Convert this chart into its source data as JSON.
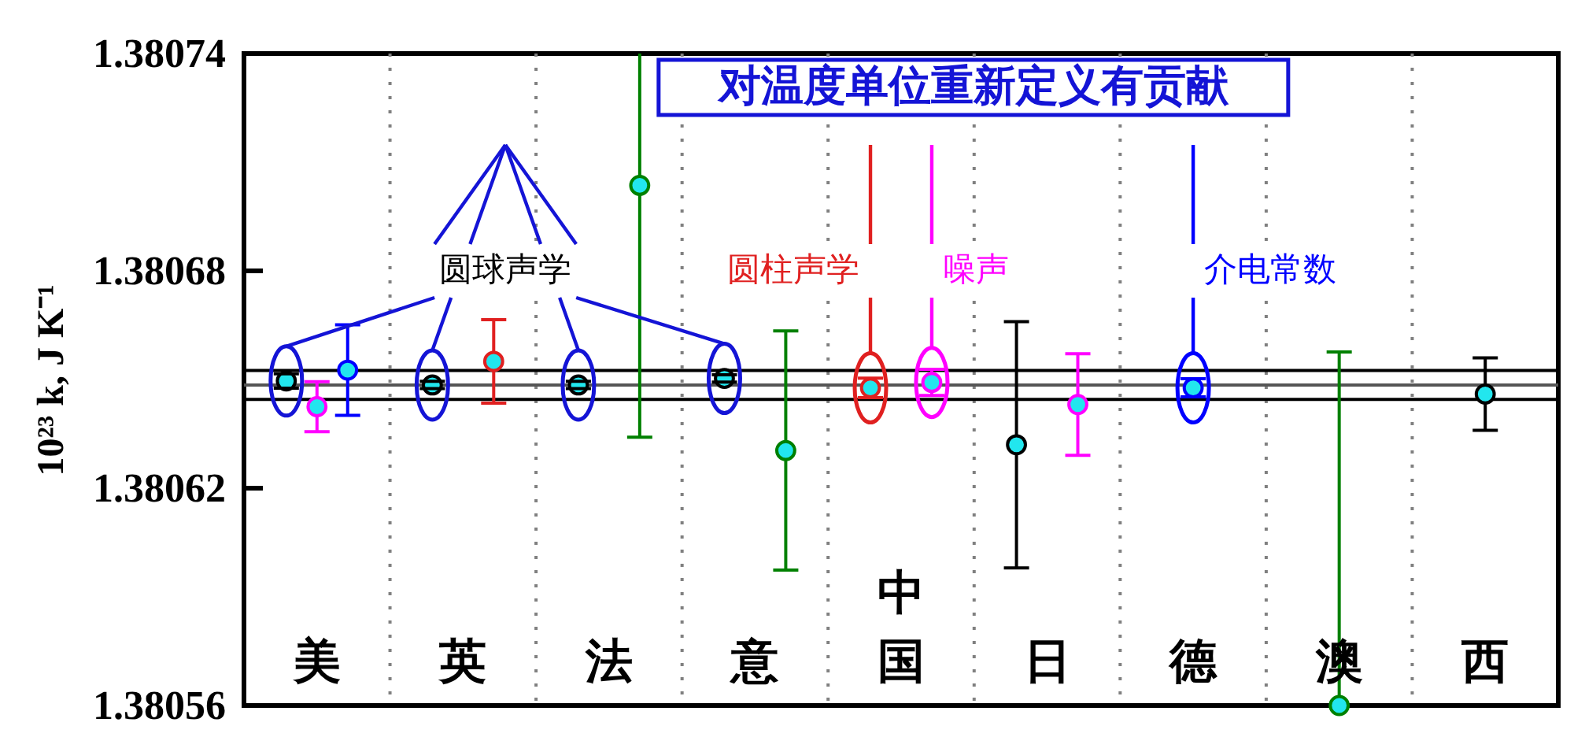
{
  "chart_data": {
    "type": "scatter",
    "ylabel": "10²³ k, J K⁻¹",
    "categories": [
      "美",
      "英",
      "法",
      "意",
      "中国",
      "日",
      "德",
      "澳",
      "西"
    ],
    "ylim": [
      1.38056,
      1.38074
    ],
    "yticks": [
      1.38056,
      1.38062,
      1.38068,
      1.38074
    ],
    "grid": "x",
    "marker": "circle",
    "annotations": [
      "对温度单位重新定义有贡献"
    ],
    "ref_lines": [
      {
        "axis": "y",
        "value": 1.3806525,
        "color": "#000000"
      },
      {
        "axis": "y",
        "value": 1.3806485,
        "color": "#555555"
      },
      {
        "axis": "y",
        "value": 1.3806445,
        "color": "#000000"
      }
    ],
    "series": [
      {
        "name": "圆球声学",
        "color": "#000000",
        "x": [
          "美",
          "英",
          "法",
          "意"
        ],
        "values": [
          1.3806496,
          1.3806485,
          1.3806485,
          1.3806503
        ],
        "errors": [
          2e-06,
          1e-06,
          1e-06,
          1e-06
        ]
      },
      {
        "name": "圆柱声学",
        "color": "#e02020",
        "x": [
          "中国"
        ],
        "values": [
          1.3806477
        ],
        "errors": [
          2.7e-06
        ]
      },
      {
        "name": "噪声",
        "color": "#ff00ff",
        "x": [
          "中国"
        ],
        "values": [
          1.3806492
        ],
        "errors": [
          3.6e-06
        ]
      },
      {
        "name": "介电常数",
        "color": "#0000ff",
        "x": [
          "德"
        ],
        "values": [
          1.3806477
        ],
        "errors": [
          2.5e-06
        ]
      },
      {
        "color": "#000000",
        "x": [
          "日",
          "西"
        ],
        "values": [
          1.380632,
          1.380646
        ],
        "errors": [
          3.4e-05,
          1e-05
        ]
      },
      {
        "color": "#e02020",
        "x": [
          "英"
        ],
        "values": [
          1.380655
        ],
        "errors": [
          1.15e-05
        ]
      },
      {
        "color": "#ff00ff",
        "x": [
          "美",
          "日"
        ],
        "values": [
          1.3806425,
          1.3806431
        ],
        "errors": [
          6.9e-06,
          1.4e-05
        ]
      },
      {
        "color": "#0000ff",
        "x": [
          "美"
        ],
        "values": [
          1.3806526
        ],
        "errors": [
          1.25e-05
        ]
      },
      {
        "color": "#008000",
        "x": [
          "法",
          "意",
          "澳"
        ],
        "values": [
          1.3807036,
          1.3806304,
          1.38056
        ],
        "errors": [
          [
            1.3806341,
            1.38074
          ],
          3.3e-05,
          [
            1.38056,
            1.3806576
          ]
        ]
      }
    ]
  }
}
